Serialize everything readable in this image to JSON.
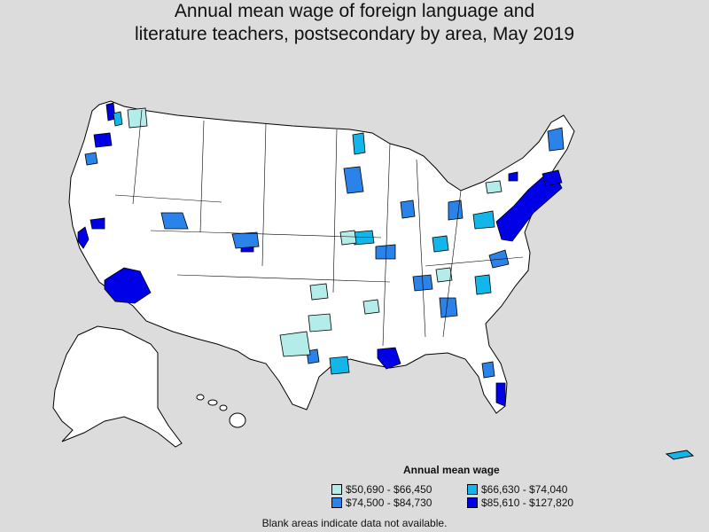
{
  "title": {
    "line1": "Annual mean wage of foreign language and",
    "line2": "literature teachers, postsecondary by area, May 2019"
  },
  "legend": {
    "title": "Annual mean wage",
    "items": [
      {
        "label": "$50,690 - $66,450",
        "color": "#b3ece9"
      },
      {
        "label": "$66,630 - $74,040",
        "color": "#12b6e8"
      },
      {
        "label": "$74,500 - $84,730",
        "color": "#2b82e8"
      },
      {
        "label": "$85,610 - $127,820",
        "color": "#0000e6"
      }
    ]
  },
  "note": "Blank areas indicate data not available.",
  "colors": {
    "background": "#dcdcdc",
    "land": "#ffffff",
    "border": "#000000"
  }
}
